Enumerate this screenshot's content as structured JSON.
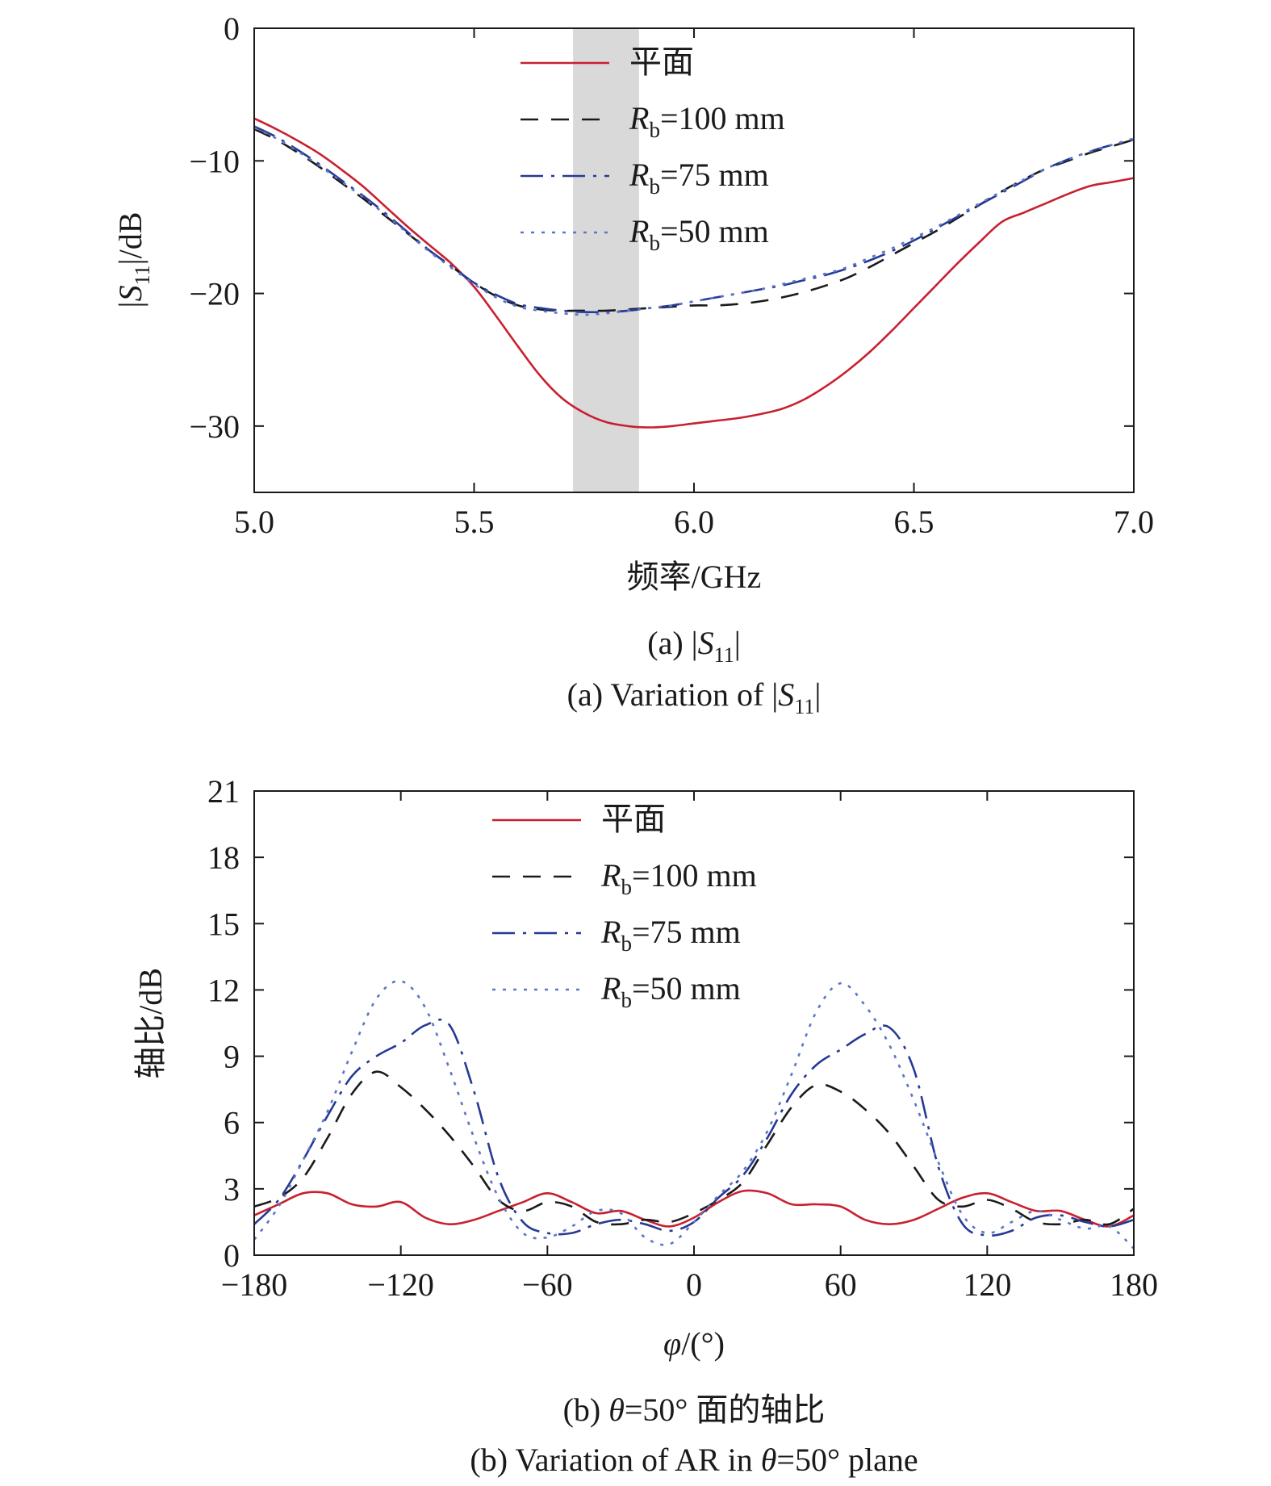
{
  "chart_data": [
    {
      "type": "line",
      "ylabel": "|S11|/dB",
      "xlabel": "频率/GHz",
      "caption_cn": "(a) |S11|",
      "caption_en": "(a) Variation of |S11|",
      "xlim": [
        5.0,
        7.0
      ],
      "ylim": [
        -35,
        0
      ],
      "xticks": [
        "5.0",
        "5.5",
        "6.0",
        "6.5",
        "7.0"
      ],
      "yticks": [
        "0",
        "−10",
        "−20",
        "−30"
      ],
      "ytick_values": [
        0,
        -10,
        -20,
        -30
      ],
      "xtick_values": [
        5.0,
        5.5,
        6.0,
        6.5,
        7.0
      ],
      "shaded_band": [
        5.725,
        5.875
      ],
      "legend_placement": "top-center",
      "series": [
        {
          "name": "平面",
          "color": "#c8202f",
          "style": "solid",
          "x": [
            5.0,
            5.05,
            5.1,
            5.15,
            5.2,
            5.25,
            5.3,
            5.35,
            5.4,
            5.45,
            5.5,
            5.55,
            5.6,
            5.65,
            5.7,
            5.75,
            5.8,
            5.85,
            5.9,
            5.95,
            6.0,
            6.05,
            6.1,
            6.15,
            6.2,
            6.25,
            6.3,
            6.35,
            6.4,
            6.45,
            6.5,
            6.55,
            6.6,
            6.65,
            6.7,
            6.75,
            6.8,
            6.85,
            6.9,
            6.95,
            7.0
          ],
          "y": [
            -6.8,
            -7.6,
            -8.5,
            -9.5,
            -10.7,
            -12.0,
            -13.5,
            -15.0,
            -16.4,
            -17.8,
            -19.5,
            -21.7,
            -24.0,
            -26.2,
            -27.9,
            -29.0,
            -29.7,
            -30.0,
            -30.1,
            -30.0,
            -29.8,
            -29.6,
            -29.4,
            -29.1,
            -28.7,
            -28.0,
            -27.0,
            -25.8,
            -24.4,
            -22.8,
            -21.1,
            -19.4,
            -17.7,
            -16.1,
            -14.6,
            -13.9,
            -13.2,
            -12.5,
            -11.9,
            -11.6,
            -11.3
          ]
        },
        {
          "name": "Rb=100 mm",
          "color": "#1a1a1a",
          "style": "dashed",
          "x": [
            5.0,
            5.05,
            5.1,
            5.15,
            5.2,
            5.25,
            5.3,
            5.35,
            5.4,
            5.45,
            5.5,
            5.55,
            5.6,
            5.65,
            5.7,
            5.75,
            5.8,
            5.85,
            5.9,
            5.95,
            6.0,
            6.05,
            6.1,
            6.15,
            6.2,
            6.25,
            6.3,
            6.35,
            6.4,
            6.45,
            6.5,
            6.55,
            6.6,
            6.65,
            6.7,
            6.75,
            6.8,
            6.85,
            6.9,
            6.95,
            7.0
          ],
          "y": [
            -7.6,
            -8.4,
            -9.4,
            -10.5,
            -11.7,
            -12.9,
            -14.2,
            -15.5,
            -16.8,
            -18.0,
            -19.2,
            -20.2,
            -20.9,
            -21.2,
            -21.3,
            -21.3,
            -21.3,
            -21.2,
            -21.1,
            -21.0,
            -20.9,
            -20.9,
            -20.8,
            -20.6,
            -20.3,
            -19.9,
            -19.4,
            -18.8,
            -18.0,
            -17.1,
            -16.2,
            -15.3,
            -14.3,
            -13.3,
            -12.3,
            -11.4,
            -10.6,
            -10.0,
            -9.4,
            -8.9,
            -8.4
          ]
        },
        {
          "name": "Rb=75 mm",
          "color": "#263a94",
          "style": "dashdot",
          "x": [
            5.0,
            5.05,
            5.1,
            5.15,
            5.2,
            5.25,
            5.3,
            5.35,
            5.4,
            5.45,
            5.5,
            5.55,
            5.6,
            5.65,
            5.7,
            5.75,
            5.8,
            5.85,
            5.9,
            5.95,
            6.0,
            6.05,
            6.1,
            6.15,
            6.2,
            6.25,
            6.3,
            6.35,
            6.4,
            6.45,
            6.5,
            6.55,
            6.6,
            6.65,
            6.7,
            6.75,
            6.8,
            6.85,
            6.9,
            6.95,
            7.0
          ],
          "y": [
            -7.4,
            -8.2,
            -9.2,
            -10.3,
            -11.5,
            -12.7,
            -14.0,
            -15.4,
            -16.8,
            -18.0,
            -19.2,
            -20.1,
            -20.8,
            -21.1,
            -21.3,
            -21.4,
            -21.4,
            -21.3,
            -21.1,
            -20.9,
            -20.6,
            -20.3,
            -20.0,
            -19.7,
            -19.4,
            -19.0,
            -18.6,
            -18.1,
            -17.5,
            -16.8,
            -16.0,
            -15.1,
            -14.2,
            -13.3,
            -12.4,
            -11.5,
            -10.6,
            -9.9,
            -9.3,
            -8.8,
            -8.4
          ]
        },
        {
          "name": "Rb=50 mm",
          "color": "#5b76c8",
          "style": "dotted",
          "x": [
            5.0,
            5.05,
            5.1,
            5.15,
            5.2,
            5.25,
            5.3,
            5.35,
            5.4,
            5.45,
            5.5,
            5.55,
            5.6,
            5.65,
            5.7,
            5.75,
            5.8,
            5.85,
            5.9,
            5.95,
            6.0,
            6.05,
            6.1,
            6.15,
            6.2,
            6.25,
            6.3,
            6.35,
            6.4,
            6.45,
            6.5,
            6.55,
            6.6,
            6.65,
            6.7,
            6.75,
            6.8,
            6.85,
            6.9,
            6.95,
            7.0
          ],
          "y": [
            -7.5,
            -8.3,
            -9.3,
            -10.4,
            -11.6,
            -12.8,
            -14.1,
            -15.5,
            -16.9,
            -18.1,
            -19.3,
            -20.3,
            -21.0,
            -21.3,
            -21.5,
            -21.6,
            -21.5,
            -21.3,
            -21.1,
            -20.9,
            -20.6,
            -20.3,
            -20.0,
            -19.7,
            -19.3,
            -18.9,
            -18.5,
            -18.0,
            -17.3,
            -16.6,
            -15.8,
            -15.0,
            -14.1,
            -13.2,
            -12.3,
            -11.4,
            -10.6,
            -9.9,
            -9.3,
            -8.8,
            -8.3
          ]
        }
      ],
      "legend": [
        {
          "main": "平面",
          "sub": "",
          "tail": ""
        },
        {
          "main": "R",
          "sub": "b",
          "tail": "=100 mm"
        },
        {
          "main": "R",
          "sub": "b",
          "tail": "=75 mm"
        },
        {
          "main": "R",
          "sub": "b",
          "tail": "=50 mm"
        }
      ]
    },
    {
      "type": "line",
      "ylabel": "轴比/dB",
      "xlabel": "φ/(°)",
      "caption_cn": "(b) θ=50° 面的轴比",
      "caption_en": "(b) Variation of AR in θ=50° plane",
      "xlim": [
        -180,
        180
      ],
      "ylim": [
        0,
        21
      ],
      "xticks": [
        "−180",
        "−120",
        "−60",
        "0",
        "60",
        "120",
        "180"
      ],
      "xtick_values": [
        -180,
        -120,
        -60,
        0,
        60,
        120,
        180
      ],
      "yticks": [
        "0",
        "3",
        "6",
        "9",
        "12",
        "15",
        "18",
        "21"
      ],
      "ytick_values": [
        0,
        3,
        6,
        9,
        12,
        15,
        18,
        21
      ],
      "legend_placement": "top-center",
      "series": [
        {
          "name": "平面",
          "color": "#c8202f",
          "style": "solid",
          "x": [
            -180,
            -170,
            -160,
            -150,
            -140,
            -130,
            -120,
            -110,
            -100,
            -90,
            -80,
            -70,
            -60,
            -50,
            -40,
            -30,
            -20,
            -10,
            0,
            10,
            20,
            30,
            40,
            50,
            60,
            70,
            80,
            90,
            100,
            110,
            120,
            130,
            140,
            150,
            160,
            170,
            180
          ],
          "y": [
            1.8,
            2.3,
            2.8,
            2.8,
            2.3,
            2.2,
            2.4,
            1.7,
            1.4,
            1.6,
            2.0,
            2.4,
            2.8,
            2.4,
            1.9,
            2.0,
            1.6,
            1.3,
            1.7,
            2.4,
            2.9,
            2.8,
            2.3,
            2.3,
            2.2,
            1.6,
            1.4,
            1.6,
            2.1,
            2.6,
            2.8,
            2.4,
            2.0,
            2.0,
            1.6,
            1.3,
            1.8
          ]
        },
        {
          "name": "Rb=100 mm",
          "color": "#1a1a1a",
          "style": "dashed",
          "x": [
            -180,
            -170,
            -160,
            -150,
            -140,
            -130,
            -120,
            -110,
            -100,
            -90,
            -80,
            -70,
            -60,
            -50,
            -40,
            -30,
            -20,
            -10,
            0,
            10,
            20,
            30,
            40,
            50,
            60,
            70,
            80,
            90,
            100,
            110,
            120,
            130,
            140,
            150,
            160,
            170,
            180
          ],
          "y": [
            2.2,
            2.6,
            3.5,
            5.3,
            7.3,
            8.3,
            7.6,
            6.6,
            5.4,
            4.0,
            2.5,
            2.0,
            2.4,
            2.2,
            1.5,
            1.4,
            1.6,
            1.5,
            1.9,
            2.5,
            3.3,
            5.0,
            6.7,
            7.7,
            7.4,
            6.6,
            5.5,
            4.0,
            2.5,
            2.2,
            2.5,
            2.1,
            1.5,
            1.4,
            1.6,
            1.4,
            2.1
          ]
        },
        {
          "name": "Rb=75 mm",
          "color": "#263a94",
          "style": "dashdot",
          "x": [
            -180,
            -170,
            -160,
            -150,
            -140,
            -130,
            -120,
            -110,
            -100,
            -90,
            -80,
            -70,
            -60,
            -50,
            -40,
            -30,
            -20,
            -10,
            0,
            10,
            20,
            30,
            40,
            50,
            60,
            70,
            80,
            90,
            100,
            110,
            120,
            130,
            140,
            150,
            160,
            170,
            180
          ],
          "y": [
            1.4,
            2.5,
            4.3,
            6.3,
            8.1,
            9.0,
            9.6,
            10.4,
            10.4,
            7.4,
            3.5,
            1.5,
            1.0,
            1.0,
            1.4,
            1.6,
            1.4,
            1.1,
            1.5,
            2.6,
            3.6,
            5.3,
            7.3,
            8.6,
            9.3,
            10.0,
            10.3,
            8.4,
            4.0,
            1.4,
            0.9,
            1.1,
            1.7,
            1.8,
            1.5,
            1.3,
            1.6
          ]
        },
        {
          "name": "Rb=50 mm",
          "color": "#5b76c8",
          "style": "dotted",
          "x": [
            -180,
            -170,
            -160,
            -150,
            -140,
            -130,
            -120,
            -110,
            -100,
            -90,
            -80,
            -70,
            -60,
            -50,
            -40,
            -30,
            -20,
            -10,
            0,
            10,
            20,
            30,
            40,
            50,
            60,
            70,
            80,
            90,
            100,
            110,
            120,
            130,
            140,
            150,
            160,
            170,
            180
          ],
          "y": [
            0.7,
            2.2,
            4.3,
            6.5,
            9.2,
            11.6,
            12.4,
            11.2,
            8.4,
            5.3,
            2.6,
            1.0,
            0.8,
            1.3,
            2.0,
            1.9,
            0.8,
            0.5,
            1.5,
            2.7,
            3.8,
            5.6,
            8.2,
            11.0,
            12.3,
            11.3,
            9.5,
            7.0,
            4.2,
            1.8,
            1.0,
            1.5,
            2.0,
            1.6,
            1.2,
            1.3,
            0.3
          ]
        }
      ],
      "legend": [
        {
          "main": "平面",
          "sub": "",
          "tail": ""
        },
        {
          "main": "R",
          "sub": "b",
          "tail": "=100 mm"
        },
        {
          "main": "R",
          "sub": "b",
          "tail": "=75 mm"
        },
        {
          "main": "R",
          "sub": "b",
          "tail": "=50 mm"
        }
      ]
    }
  ]
}
